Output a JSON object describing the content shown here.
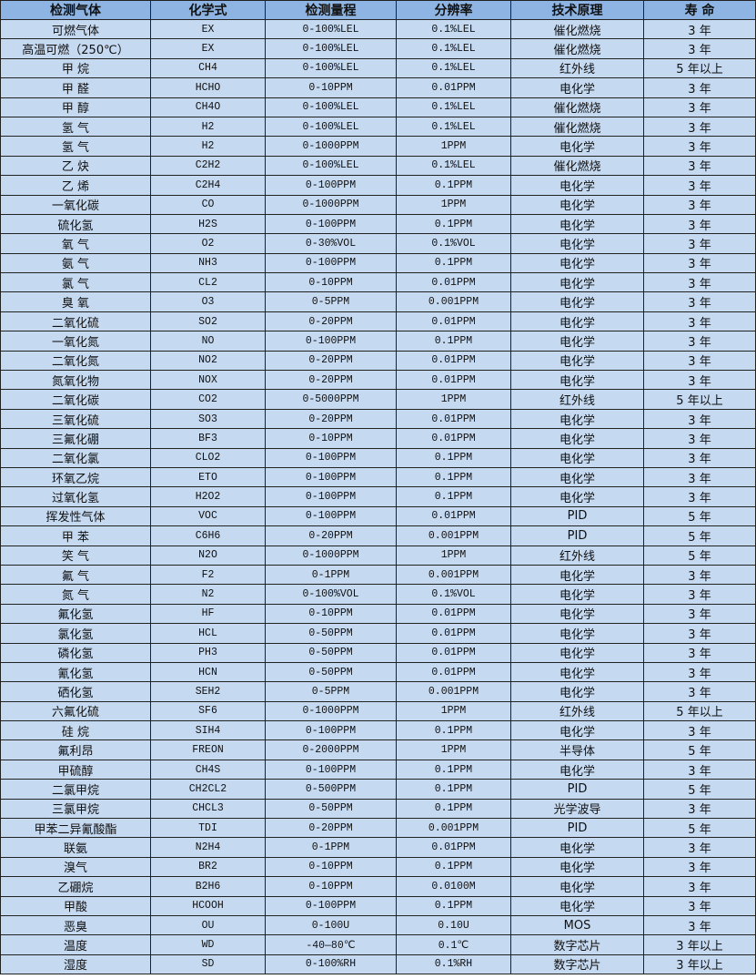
{
  "colors": {
    "header_bg": "#8DB4E2",
    "row_bg": "#C5D9F1",
    "border": "#222222"
  },
  "headers": [
    "检测气体",
    "化学式",
    "检测量程",
    "分辨率",
    "技术原理",
    "寿 命"
  ],
  "rows": [
    [
      "可燃气体",
      "EX",
      "0-100%LEL",
      "0.1%LEL",
      "催化燃烧",
      "3 年"
    ],
    [
      "高温可燃（250℃）",
      "EX",
      "0-100%LEL",
      "0.1%LEL",
      "催化燃烧",
      "3 年"
    ],
    [
      "甲 烷",
      "CH4",
      "0-100%LEL",
      "0.1%LEL",
      "红外线",
      "5 年以上"
    ],
    [
      "甲 醛",
      "HCHO",
      "0-10PPM",
      "0.01PPM",
      "电化学",
      "3 年"
    ],
    [
      "甲 醇",
      "CH4O",
      "0-100%LEL",
      "0.1%LEL",
      "催化燃烧",
      "3 年"
    ],
    [
      "氢 气",
      "H2",
      "0-100%LEL",
      "0.1%LEL",
      "催化燃烧",
      "3 年"
    ],
    [
      "氢 气",
      "H2",
      "0-1000PPM",
      "1PPM",
      "电化学",
      "3 年"
    ],
    [
      "乙 炔",
      "C2H2",
      "0-100%LEL",
      "0.1%LEL",
      "催化燃烧",
      "3 年"
    ],
    [
      "乙 烯",
      "C2H4",
      "0-100PPM",
      "0.1PPM",
      "电化学",
      "3 年"
    ],
    [
      "一氧化碳",
      "CO",
      "0-1000PPM",
      "1PPM",
      "电化学",
      "3 年"
    ],
    [
      "硫化氢",
      "H2S",
      "0-100PPM",
      "0.1PPM",
      "电化学",
      "3 年"
    ],
    [
      "氧 气",
      "O2",
      "0-30%VOL",
      "0.1%VOL",
      "电化学",
      "3 年"
    ],
    [
      "氨 气",
      "NH3",
      "0-100PPM",
      "0.1PPM",
      "电化学",
      "3 年"
    ],
    [
      "氯 气",
      "CL2",
      "0-10PPM",
      "0.01PPM",
      "电化学",
      "3 年"
    ],
    [
      "臭 氧",
      "O3",
      "0-5PPM",
      "0.001PPM",
      "电化学",
      "3 年"
    ],
    [
      "二氧化硫",
      "SO2",
      "0-20PPM",
      "0.01PPM",
      "电化学",
      "3 年"
    ],
    [
      "一氧化氮",
      "NO",
      "0-100PPM",
      "0.1PPM",
      "电化学",
      "3 年"
    ],
    [
      "二氧化氮",
      "NO2",
      "0-20PPM",
      "0.01PPM",
      "电化学",
      "3 年"
    ],
    [
      "氮氧化物",
      "NOX",
      "0-20PPM",
      "0.01PPM",
      "电化学",
      "3 年"
    ],
    [
      "二氧化碳",
      "CO2",
      "0-5000PPM",
      "1PPM",
      "红外线",
      "5 年以上"
    ],
    [
      "三氧化硫",
      "SO3",
      "0-20PPM",
      "0.01PPM",
      "电化学",
      "3 年"
    ],
    [
      "三氟化硼",
      "BF3",
      "0-10PPM",
      "0.01PPM",
      "电化学",
      "3 年"
    ],
    [
      "二氧化氯",
      "CLO2",
      "0-100PPM",
      "0.1PPM",
      "电化学",
      "3 年"
    ],
    [
      "环氧乙烷",
      "ETO",
      "0-100PPM",
      "0.1PPM",
      "电化学",
      "3 年"
    ],
    [
      "过氧化氢",
      "H2O2",
      "0-100PPM",
      "0.1PPM",
      "电化学",
      "3 年"
    ],
    [
      "挥发性气体",
      "VOC",
      "0-100PPM",
      "0.01PPM",
      "PID",
      "5 年"
    ],
    [
      "甲 苯",
      "C6H6",
      "0-20PPM",
      "0.001PPM",
      "PID",
      "5 年"
    ],
    [
      "笑 气",
      "N2O",
      "0-1000PPM",
      "1PPM",
      "红外线",
      "5 年"
    ],
    [
      "氟 气",
      "F2",
      "0-1PPM",
      "0.001PPM",
      "电化学",
      "3 年"
    ],
    [
      "氮 气",
      "N2",
      "0-100%VOL",
      "0.1%VOL",
      "电化学",
      "3 年"
    ],
    [
      "氟化氢",
      "HF",
      "0-10PPM",
      "0.01PPM",
      "电化学",
      "3 年"
    ],
    [
      "氯化氢",
      "HCL",
      "0-50PPM",
      "0.01PPM",
      "电化学",
      "3 年"
    ],
    [
      "磷化氢",
      "PH3",
      "0-50PPM",
      "0.01PPM",
      "电化学",
      "3 年"
    ],
    [
      "氰化氢",
      "HCN",
      "0-50PPM",
      "0.01PPM",
      "电化学",
      "3 年"
    ],
    [
      "硒化氢",
      "SEH2",
      "0-5PPM",
      "0.001PPM",
      "电化学",
      "3 年"
    ],
    [
      "六氟化硫",
      "SF6",
      "0-1000PPM",
      "1PPM",
      "红外线",
      "5 年以上"
    ],
    [
      "硅 烷",
      "SIH4",
      "0-100PPM",
      "0.1PPM",
      "电化学",
      "3 年"
    ],
    [
      "氟利昂",
      "FREON",
      "0-2000PPM",
      "1PPM",
      "半导体",
      "5 年"
    ],
    [
      "甲硫醇",
      "CH4S",
      "0-100PPM",
      "0.1PPM",
      "电化学",
      "3 年"
    ],
    [
      "二氯甲烷",
      "CH2CL2",
      "0-500PPM",
      "0.1PPM",
      "PID",
      "5 年"
    ],
    [
      "三氯甲烷",
      "CHCL3",
      "0-50PPM",
      "0.1PPM",
      "光学波导",
      "3 年"
    ],
    [
      "甲苯二异氰酸酯",
      "TDI",
      "0-20PPM",
      "0.001PPM",
      "PID",
      "5 年"
    ],
    [
      "联氨",
      "N2H4",
      "0-1PPM",
      "0.01PPM",
      "电化学",
      "3 年"
    ],
    [
      "溴气",
      "BR2",
      "0-10PPM",
      "0.1PPM",
      "电化学",
      "3 年"
    ],
    [
      "乙硼烷",
      "B2H6",
      "0-10PPM",
      "0.0100M",
      "电化学",
      "3 年"
    ],
    [
      "甲酸",
      "HCOOH",
      "0-100PPM",
      "0.1PPM",
      "电化学",
      "3 年"
    ],
    [
      "恶臭",
      "OU",
      "0-100U",
      "0.10U",
      "MOS",
      "3 年"
    ],
    [
      "温度",
      "WD",
      "-40—80℃",
      "0.1℃",
      "数字芯片",
      "3 年以上"
    ],
    [
      "湿度",
      "SD",
      "0-100%RH",
      "0.1%RH",
      "数字芯片",
      "3 年以上"
    ]
  ]
}
